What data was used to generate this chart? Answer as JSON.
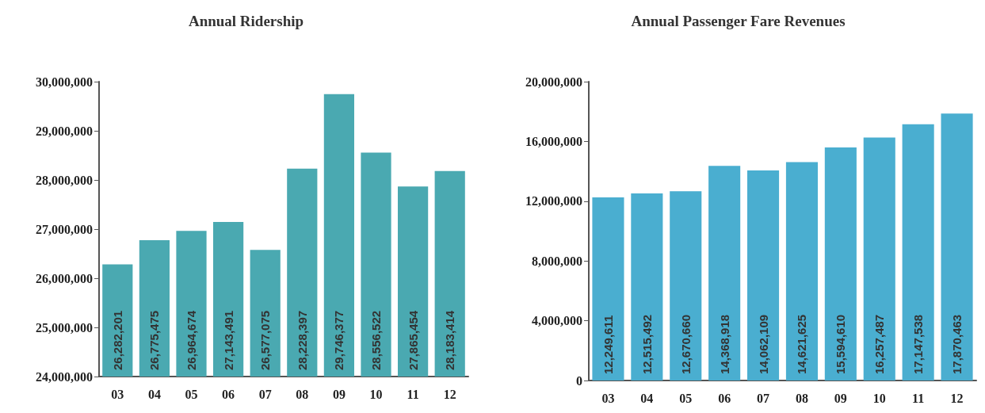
{
  "chart_data": [
    {
      "type": "bar",
      "title": "Annual Ridership",
      "categories": [
        "03",
        "04",
        "05",
        "06",
        "07",
        "08",
        "09",
        "10",
        "11",
        "12"
      ],
      "series": [
        {
          "color": "#4aa9b1",
          "values": [
            26282201,
            26775475,
            26964674,
            27143491,
            26577075,
            28228397,
            29746377,
            28556522,
            27865454,
            28183414
          ],
          "value_labels": [
            "26,282,201",
            "26,775,475",
            "26,964,674",
            "27,143,491",
            "26,577,075",
            "28,228,397",
            "29,746,377",
            "28,556,522",
            "27,865,454",
            "28,183,414"
          ]
        }
      ],
      "ylim": [
        24000000,
        30000000
      ],
      "yticks": [
        {
          "value": 24000000,
          "label": "24,000,000"
        },
        {
          "value": 25000000,
          "label": "25,000,000"
        },
        {
          "value": 26000000,
          "label": "26,000,000"
        },
        {
          "value": 27000000,
          "label": "27,000,000"
        },
        {
          "value": 28000000,
          "label": "28,000,000"
        },
        {
          "value": 29000000,
          "label": "29,000,000"
        },
        {
          "value": 30000000,
          "label": "30,000,000"
        }
      ],
      "grid": false
    },
    {
      "type": "bar",
      "title": "Annual Passenger Fare Revenues",
      "categories": [
        "03",
        "04",
        "05",
        "06",
        "07",
        "08",
        "09",
        "10",
        "11",
        "12"
      ],
      "series": [
        {
          "color": "#4aaed0",
          "values": [
            12249611,
            12515492,
            12670660,
            14368918,
            14062109,
            14621625,
            15594610,
            16257487,
            17147538,
            17870463
          ],
          "value_labels": [
            "12,249,611",
            "12,515,492",
            "12,670,660",
            "14,368,918",
            "14,062,109",
            "14,621,625",
            "15,594,610",
            "16,257,487",
            "17,147,538",
            "17,870,463"
          ]
        }
      ],
      "ylim": [
        0,
        20000000
      ],
      "yticks": [
        0,
        {
          "value": 4000000,
          "label": "4,000,000"
        },
        {
          "value": 8000000,
          "label": "8,000,000"
        },
        {
          "value": 12000000,
          "label": "12,000,000"
        },
        {
          "value": 16000000,
          "label": "16,000,000"
        },
        {
          "value": 20000000,
          "label": "20,000,000"
        }
      ],
      "grid": false
    }
  ]
}
